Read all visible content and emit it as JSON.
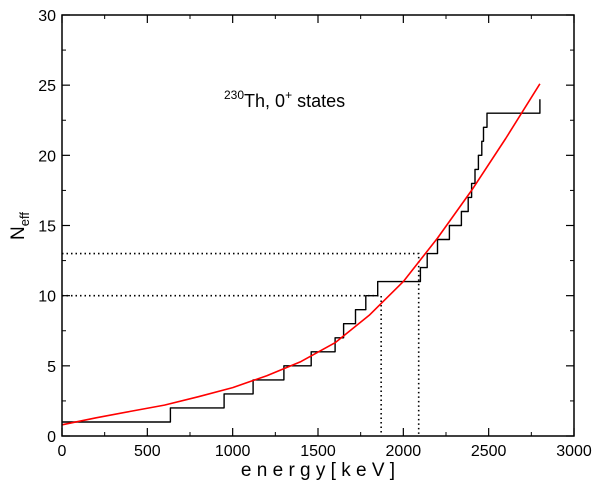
{
  "chart_data": {
    "type": "line",
    "title": "",
    "xlabel": "e n e r g y  [ k e V ]",
    "ylabel": {
      "main": "N",
      "sub": "eff"
    },
    "xlim": [
      0,
      3000
    ],
    "ylim": [
      0,
      30
    ],
    "xticks": [
      0,
      500,
      1000,
      1500,
      2000,
      2500,
      3000
    ],
    "yticks": [
      0,
      5,
      10,
      15,
      20,
      25,
      30
    ],
    "grid": false,
    "annotation": {
      "sup1": "230",
      "text1": "Th,  0",
      "sup2": "+",
      "text2": " states"
    },
    "series": [
      {
        "kind": "step",
        "color": "#000000",
        "x": [
          0,
          635,
          950,
          1120,
          1300,
          1460,
          1600,
          1650,
          1720,
          1780,
          1850,
          2100,
          2140,
          2200,
          2270,
          2340,
          2380,
          2400,
          2420,
          2440,
          2460,
          2470,
          2490,
          2550,
          2600,
          2800
        ],
        "y": [
          1,
          2,
          3,
          4,
          5,
          6,
          7,
          8,
          9,
          10,
          11,
          12,
          13,
          14,
          15,
          16,
          17,
          18,
          19,
          20,
          21,
          22,
          23,
          23,
          23,
          24
        ]
      },
      {
        "kind": "curve",
        "color": "#ff0000",
        "x": [
          0,
          200,
          400,
          600,
          800,
          1000,
          1200,
          1400,
          1600,
          1800,
          2000,
          2200,
          2400,
          2600,
          2800
        ],
        "y": [
          0.8,
          1.3,
          1.75,
          2.2,
          2.8,
          3.45,
          4.3,
          5.3,
          6.65,
          8.6,
          11.0,
          14.1,
          17.5,
          21.2,
          25.1
        ]
      }
    ],
    "reference_lines": [
      {
        "y": 10,
        "x": 1870
      },
      {
        "y": 13,
        "x": 2090
      }
    ]
  }
}
